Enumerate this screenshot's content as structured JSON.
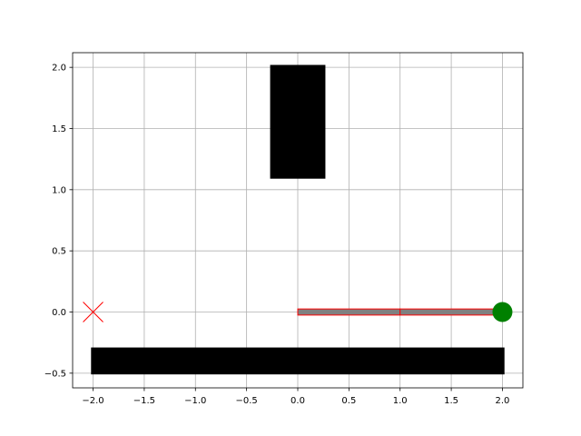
{
  "chart_data": {
    "type": "scatter",
    "title": "",
    "xlabel": "",
    "ylabel": "",
    "xlim": [
      -2.2,
      2.2
    ],
    "ylim": [
      -0.62,
      2.12
    ],
    "grid": true,
    "x_ticks": [
      -2.0,
      -1.5,
      -1.0,
      -0.5,
      0.0,
      0.5,
      1.0,
      1.5,
      2.0
    ],
    "x_tick_labels": [
      "−2.0",
      "−1.5",
      "−1.0",
      "−0.5",
      "0.0",
      "0.5",
      "1.0",
      "1.5",
      "2.0"
    ],
    "y_ticks": [
      -0.5,
      0.0,
      0.5,
      1.0,
      1.5,
      2.0
    ],
    "y_tick_labels": [
      "−0.5",
      "0.0",
      "0.5",
      "1.0",
      "1.5",
      "2.0"
    ],
    "obstacles": [
      {
        "x0": -0.27,
        "x1": 0.27,
        "y0": 1.09,
        "y1": 2.02,
        "color": "#000000"
      },
      {
        "x0": -2.02,
        "x1": 2.02,
        "y0": -0.51,
        "y1": -0.29,
        "color": "#000000"
      }
    ],
    "path": {
      "segments": [
        {
          "x0": 0.0,
          "x1": 1.0,
          "y0": -0.025,
          "y1": 0.025
        },
        {
          "x0": 1.0,
          "x1": 2.0,
          "y0": -0.025,
          "y1": 0.025
        }
      ],
      "fill": "#808080",
      "edge": "#ff0000"
    },
    "start_marker": {
      "x": -2.0,
      "y": 0.0,
      "marker": "x",
      "color": "#ff0000"
    },
    "goal_marker": {
      "x": 2.0,
      "y": 0.0,
      "marker": "circle",
      "color": "#008000"
    }
  }
}
